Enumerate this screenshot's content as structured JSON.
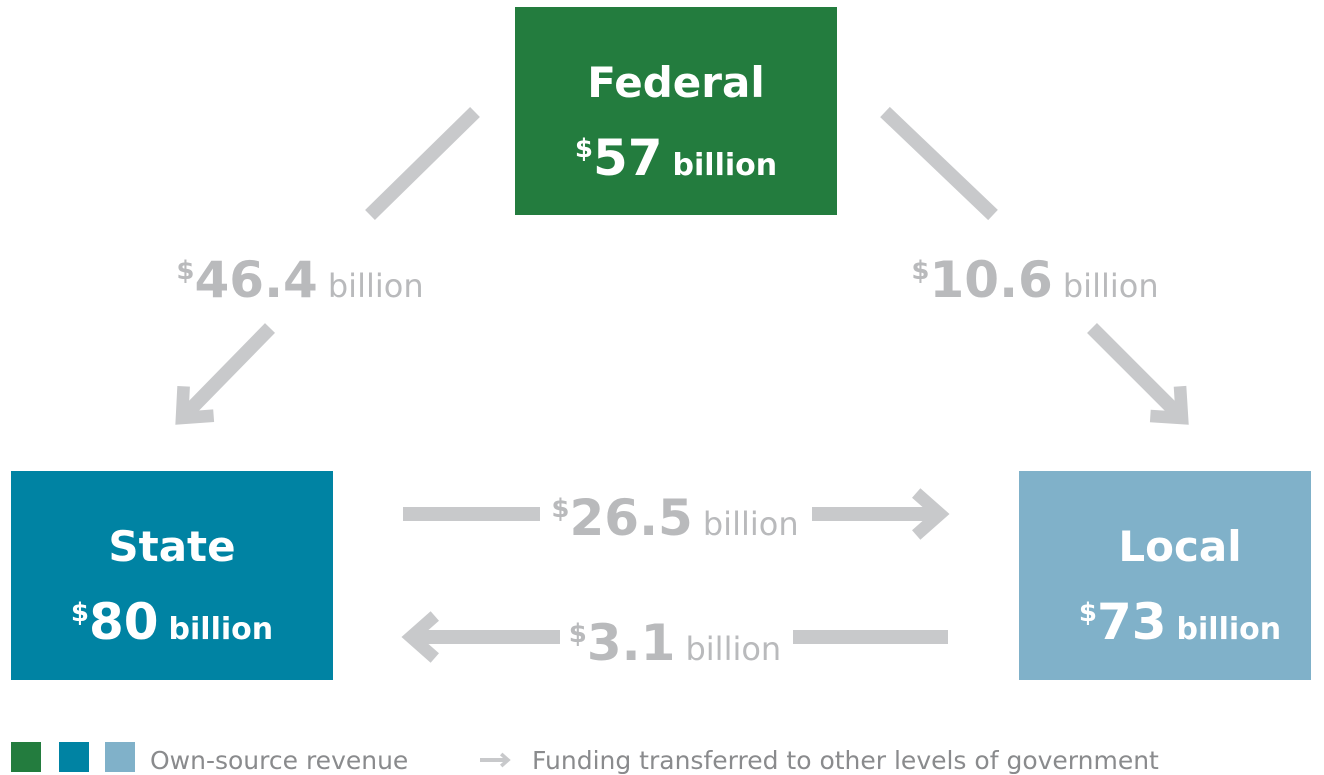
{
  "nodes": [
    {
      "label": "Federal",
      "currency": "$",
      "amount": 57,
      "unit": "billion",
      "color": "#237c3e"
    },
    {
      "label": "State",
      "currency": "$",
      "amount": 80,
      "unit": "billion",
      "color": "#0083a3"
    },
    {
      "label": "Local",
      "currency": "$",
      "amount": 73,
      "unit": "billion",
      "color": "#80b1c9"
    }
  ],
  "flows": [
    {
      "currency": "$",
      "amount": 46.4,
      "unit": "billion"
    },
    {
      "currency": "$",
      "amount": 10.6,
      "unit": "billion"
    },
    {
      "currency": "$",
      "amount": 26.5,
      "unit": "billion"
    },
    {
      "currency": "$",
      "amount": 3.1,
      "unit": "billion"
    }
  ],
  "legend": {
    "own_source": "Own-source revenue",
    "transfer": "Funding transferred to other levels of government"
  }
}
